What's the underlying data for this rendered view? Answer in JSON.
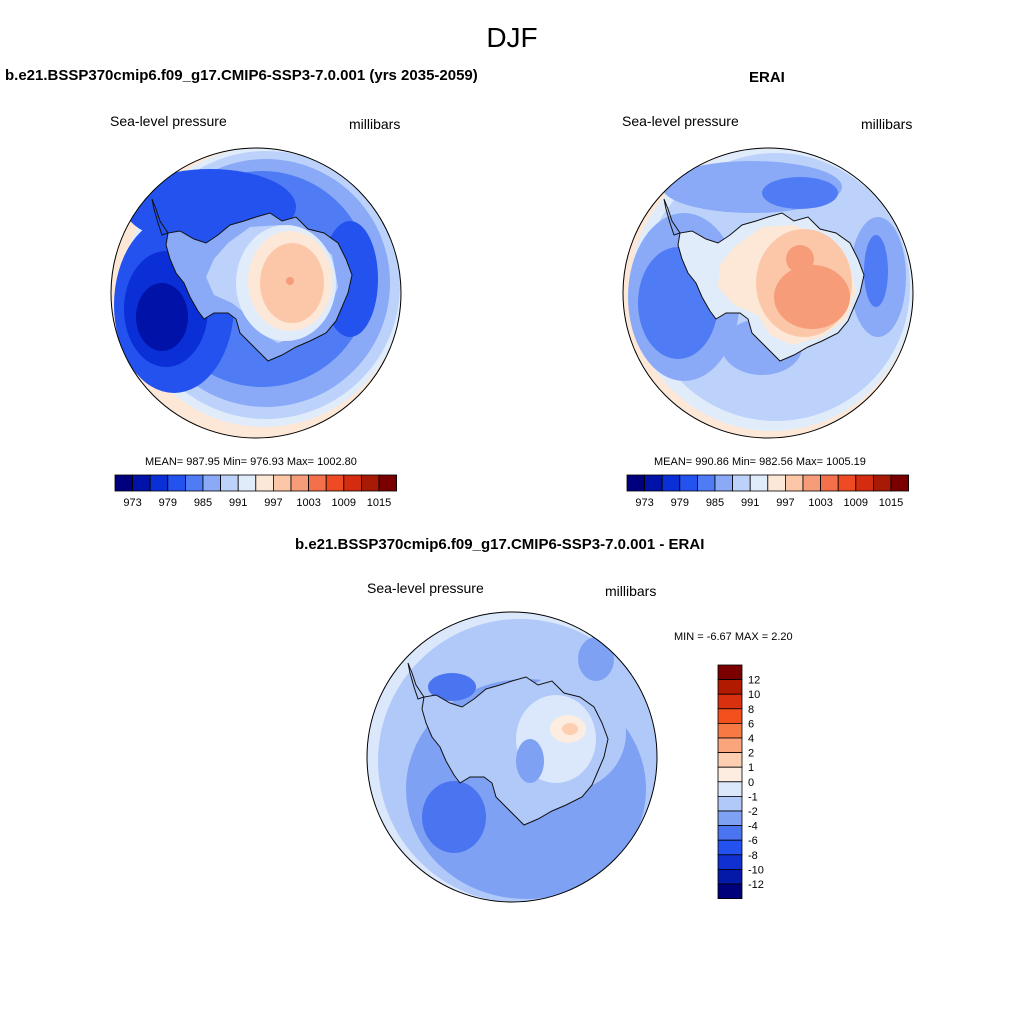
{
  "title": "DJF",
  "panels": [
    {
      "title": "b.e21.BSSP370cmip6.f09_g17.CMIP6-SSP3-7.0.001 (yrs 2035-2059)",
      "subtitle_left": "Sea-level pressure",
      "subtitle_right": "millibars",
      "stats": "MEAN= 987.95  Min= 976.93  Max= 1002.80"
    },
    {
      "title": "ERAI",
      "subtitle_left": "Sea-level pressure",
      "subtitle_right": "millibars",
      "stats": "MEAN= 990.86  Min= 982.56  Max= 1005.19"
    }
  ],
  "diff_panel": {
    "title": "b.e21.BSSP370cmip6.f09_g17.CMIP6-SSP3-7.0.001 - ERAI",
    "subtitle_left": "Sea-level pressure",
    "subtitle_right": "millibars",
    "stats": "MIN =  -6.67 MAX =   2.20"
  },
  "slp_colorbar": {
    "colors": [
      "#00007f",
      "#0012a8",
      "#0a2fd6",
      "#2452ee",
      "#4f7cf5",
      "#8aaaf7",
      "#bcd2fa",
      "#e1ecfb",
      "#fde8d7",
      "#fbc7a8",
      "#f79c78",
      "#f4704a",
      "#ee4b24",
      "#d42c10",
      "#a81a05",
      "#7a0000"
    ],
    "labels": [
      "973",
      "979",
      "985",
      "991",
      "997",
      "1003",
      "1009",
      "1015"
    ]
  },
  "diff_colorbar": {
    "colors": [
      "#7a0000",
      "#b21a00",
      "#d93010",
      "#f2501d",
      "#f77a45",
      "#fba57c",
      "#fdcfb0",
      "#fdece0",
      "#dbe7fb",
      "#b1c9f8",
      "#7fa1f4",
      "#4a74f0",
      "#2452ee",
      "#1030d0",
      "#0519a8",
      "#00007a"
    ],
    "labels": [
      "12",
      "10",
      "8",
      "6",
      "4",
      "2",
      "1",
      "0",
      "-1",
      "-2",
      "-4",
      "-6",
      "-8",
      "-10",
      "-12"
    ]
  },
  "chart_data": {
    "type": "heatmap",
    "title": "DJF",
    "variable": "Sea-level pressure",
    "units": "millibars",
    "projection": "south polar stereographic",
    "maps": [
      {
        "name": "b.e21.BSSP370cmip6.f09_g17.CMIP6-SSP3-7.0.001 (yrs 2035-2059)",
        "mean": 987.95,
        "min": 976.93,
        "max": 1002.8,
        "levels": [
          973,
          976,
          979,
          982,
          985,
          988,
          991,
          994,
          997,
          1000,
          1003,
          1006,
          1009,
          1012,
          1015
        ]
      },
      {
        "name": "ERAI",
        "mean": 990.86,
        "min": 982.56,
        "max": 1005.19,
        "levels": [
          973,
          976,
          979,
          982,
          985,
          988,
          991,
          994,
          997,
          1000,
          1003,
          1006,
          1009,
          1012,
          1015
        ]
      },
      {
        "name": "b.e21.BSSP370cmip6.f09_g17.CMIP6-SSP3-7.0.001 - ERAI",
        "min": -6.67,
        "max": 2.2,
        "levels": [
          -12,
          -10,
          -8,
          -6,
          -4,
          -2,
          -1,
          0,
          1,
          2,
          4,
          6,
          8,
          10,
          12
        ]
      }
    ]
  }
}
